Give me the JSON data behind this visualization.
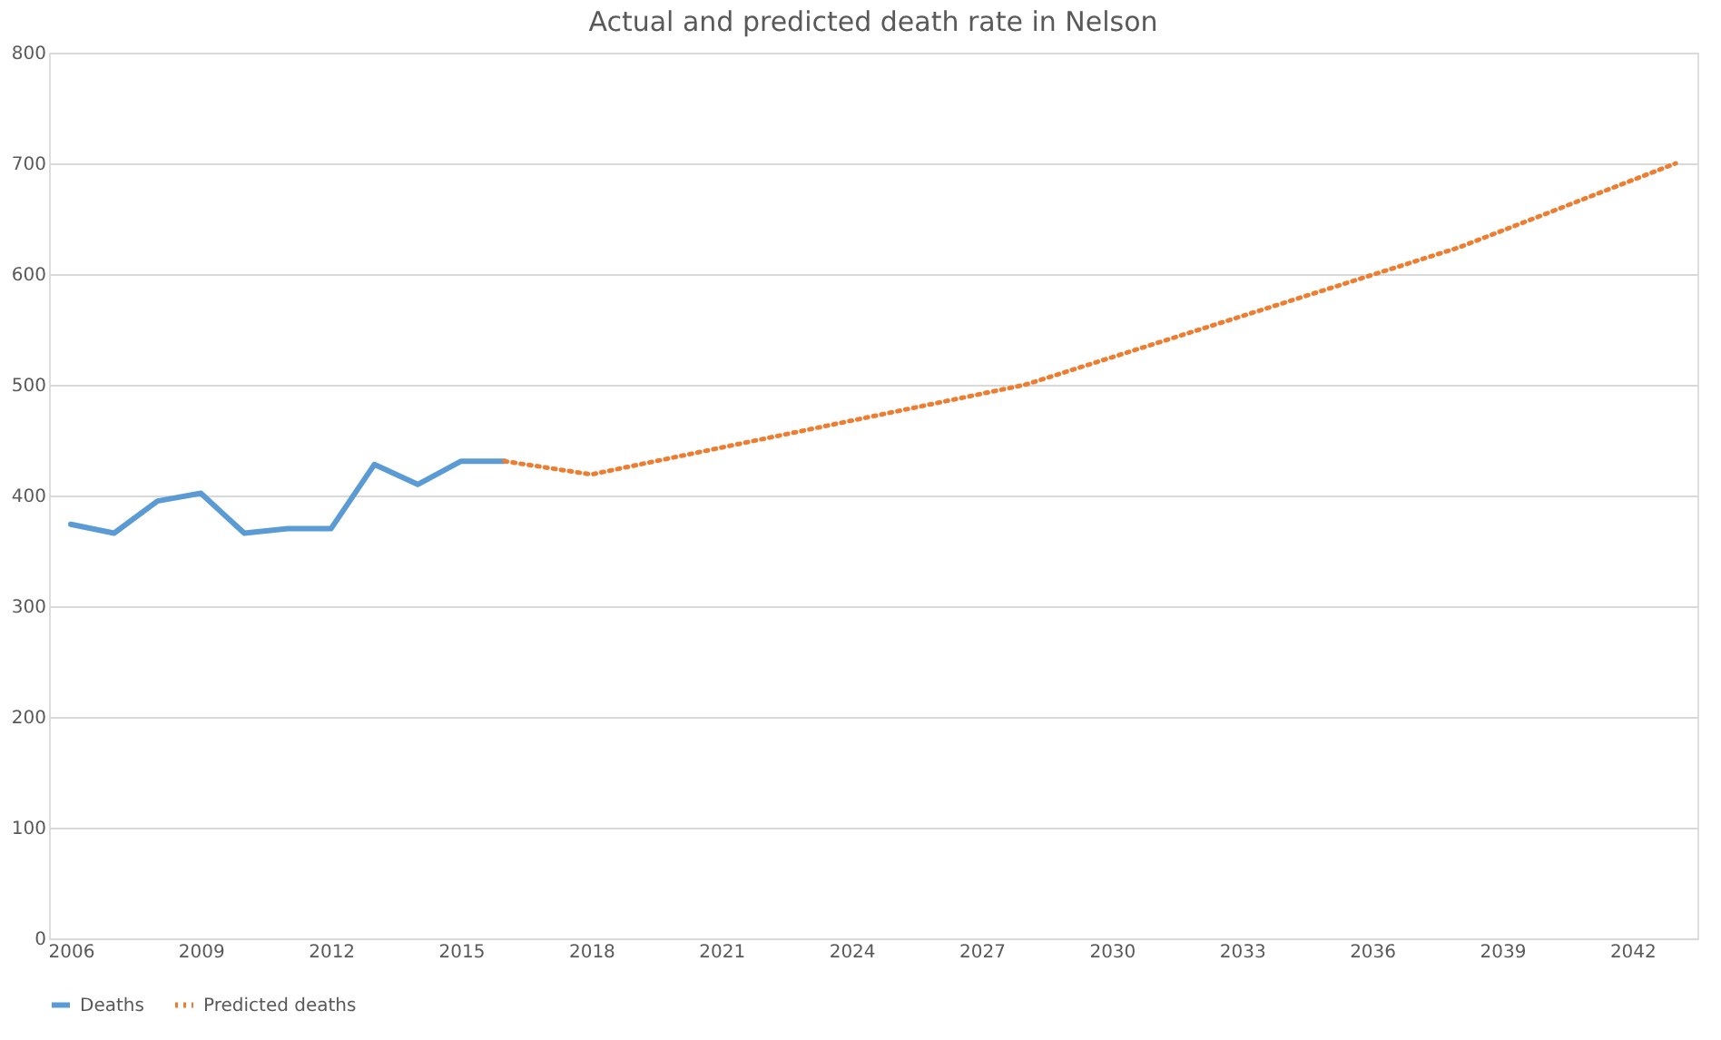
{
  "chart_data": {
    "type": "line",
    "title": "Actual and predicted death rate in Nelson",
    "xlim": [
      2005.5,
      2043.5
    ],
    "xticks": [
      2006,
      2009,
      2012,
      2015,
      2018,
      2021,
      2024,
      2027,
      2030,
      2033,
      2036,
      2039,
      2042
    ],
    "ylim": [
      0,
      800
    ],
    "yticks": [
      0,
      100,
      200,
      300,
      400,
      500,
      600,
      700,
      800
    ],
    "grid": "y",
    "legend": "bottom",
    "series": [
      {
        "name": "Deaths",
        "color": "#5b9bd5",
        "line_style": "solid",
        "x": [
          2006,
          2007,
          2008,
          2009,
          2010,
          2011,
          2012,
          2013,
          2014,
          2015,
          2016
        ],
        "values": [
          374,
          366,
          395,
          402,
          366,
          370,
          370,
          428,
          410,
          431,
          431
        ]
      },
      {
        "name": "Predicted deaths",
        "color": "#ed7d31",
        "line_style": "dotted",
        "x": [
          2016,
          2017,
          2018,
          2028,
          2033,
          2038,
          2043
        ],
        "values": [
          431,
          425,
          419,
          500,
          562,
          624,
          700
        ]
      }
    ]
  }
}
